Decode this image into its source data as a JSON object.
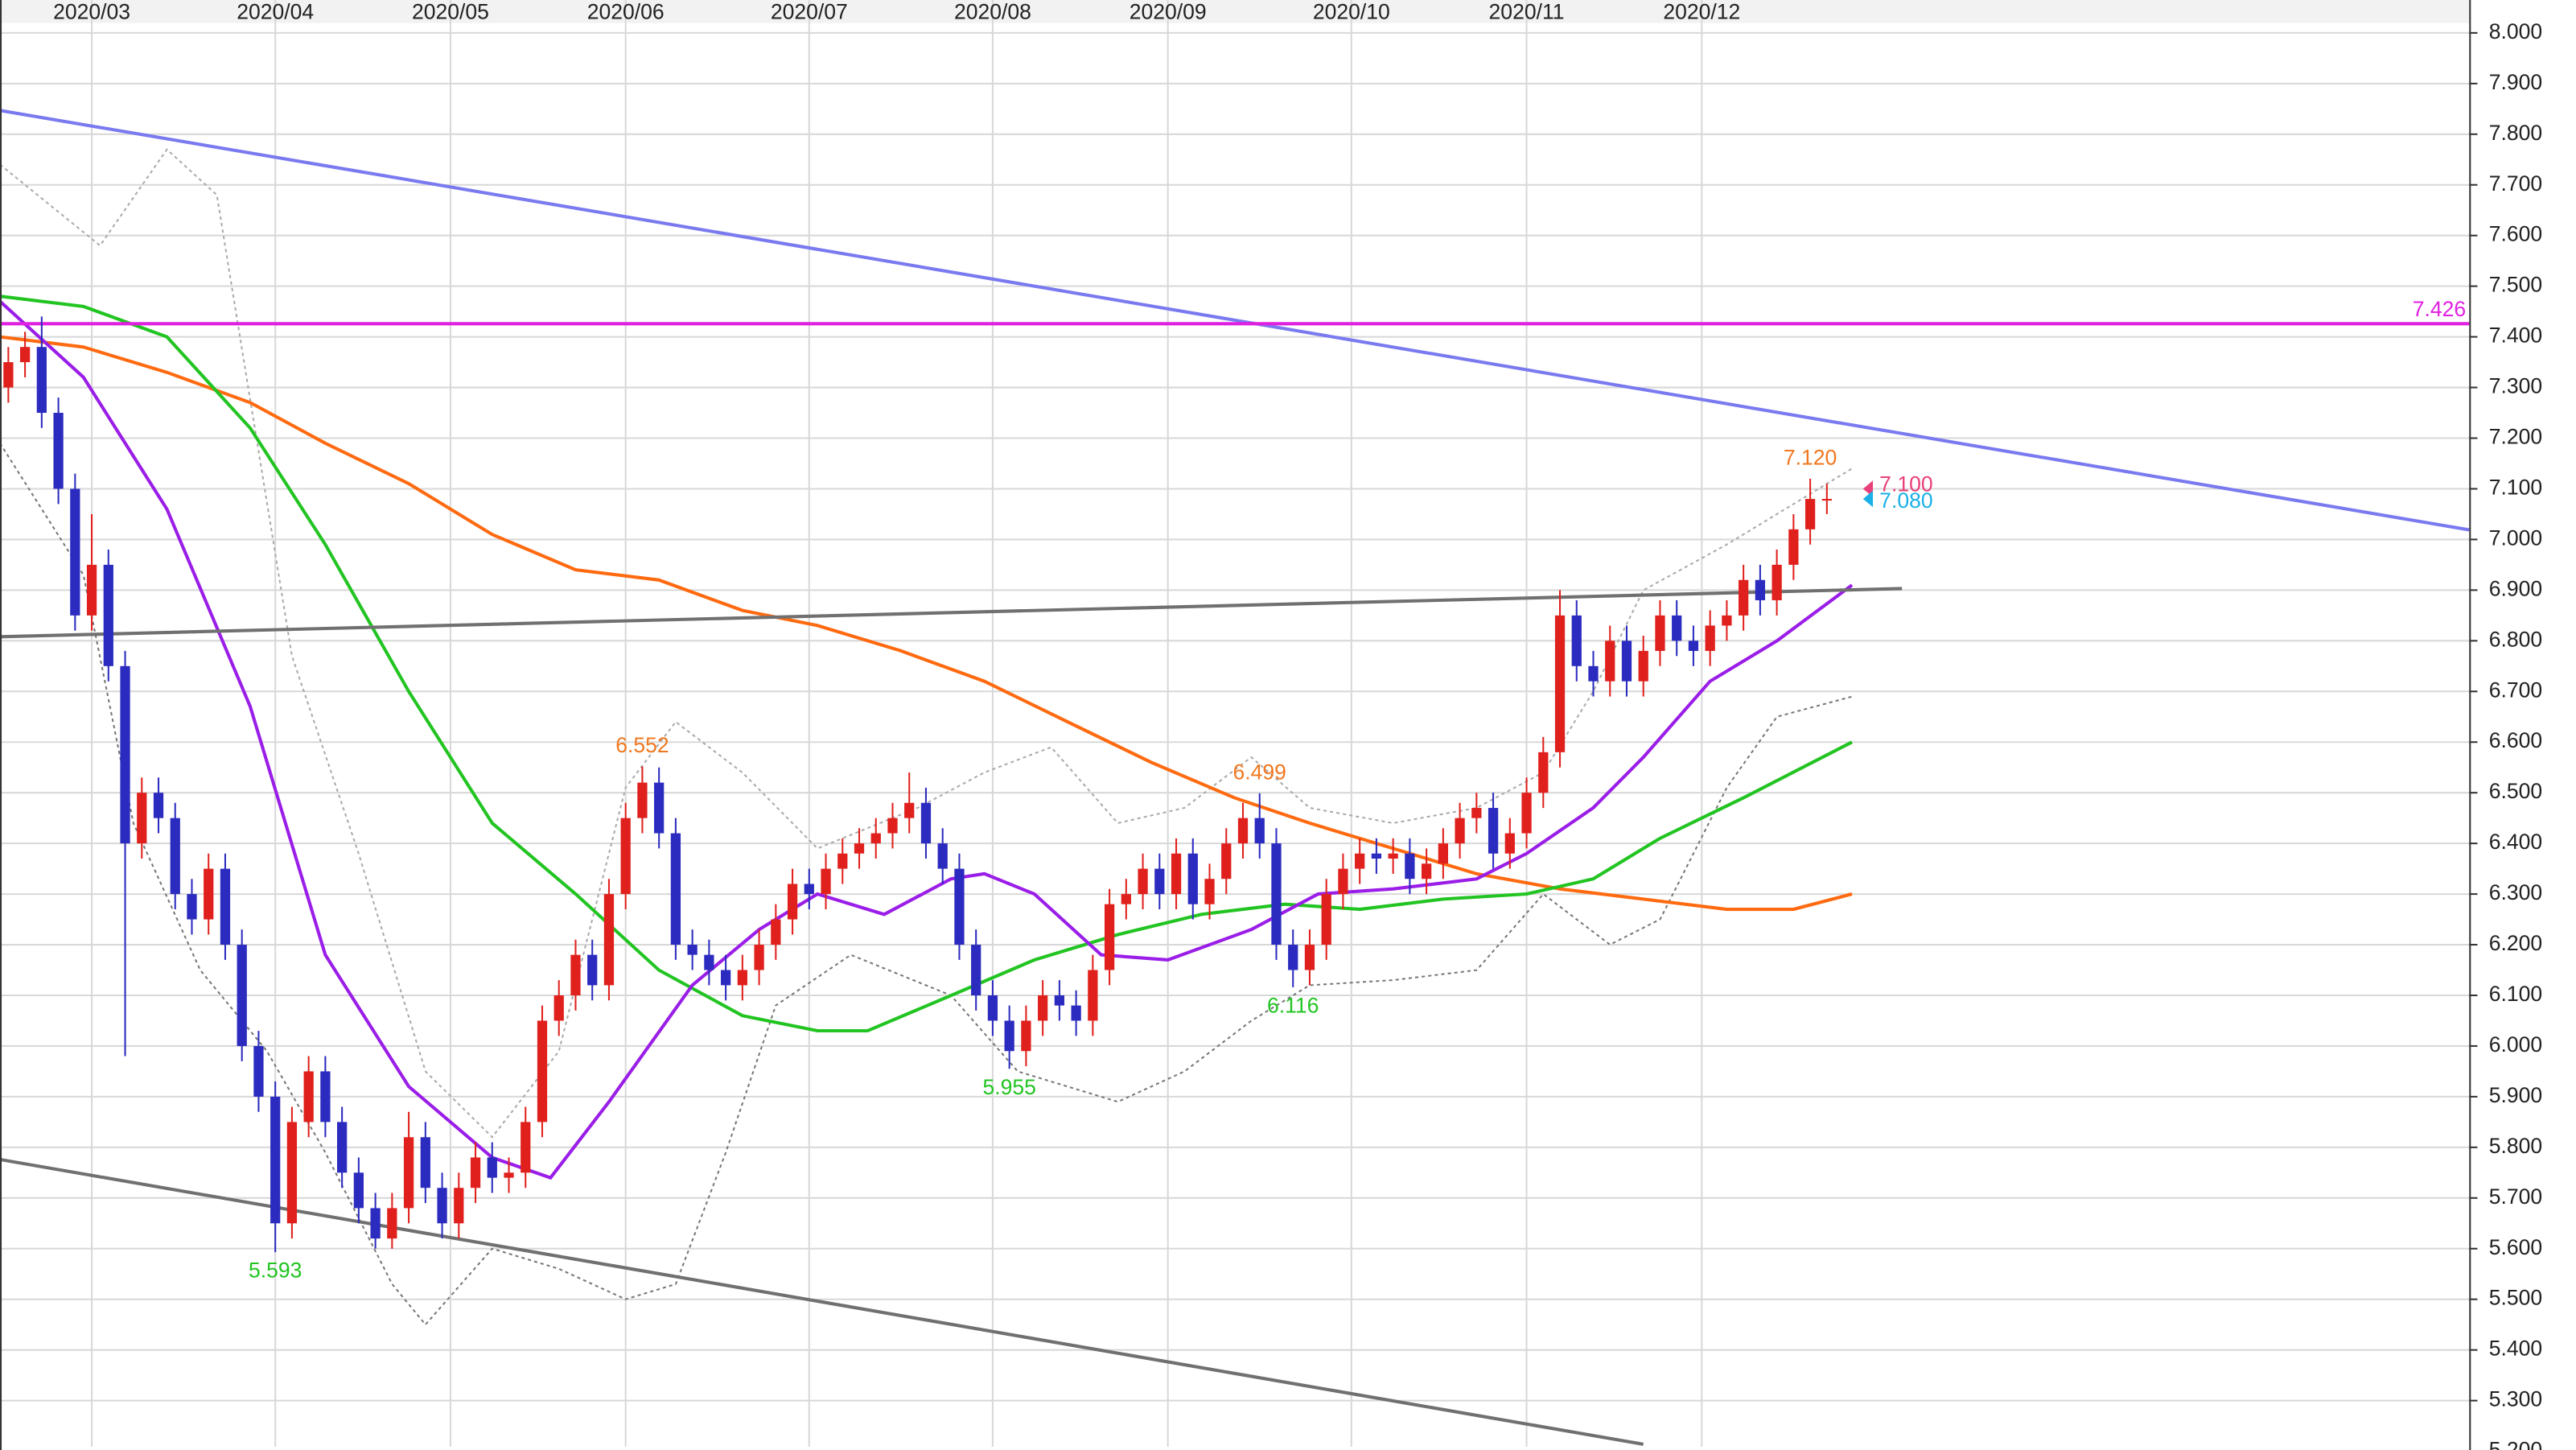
{
  "chart_data": {
    "type": "candlestick",
    "up_color": "#e0201c",
    "down_color": "#2b2bbf",
    "xlim": [
      0,
      296
    ],
    "ylim": [
      5.209,
      8.026
    ],
    "grid": true,
    "xticks": [
      {
        "value": 11,
        "label": "2020/03"
      },
      {
        "value": 33,
        "label": "2020/04"
      },
      {
        "value": 54,
        "label": "2020/05"
      },
      {
        "value": 75,
        "label": "2020/06"
      },
      {
        "value": 97,
        "label": "2020/07"
      },
      {
        "value": 119,
        "label": "2020/08"
      },
      {
        "value": 140,
        "label": "2020/09"
      },
      {
        "value": 162,
        "label": "2020/10"
      },
      {
        "value": 183,
        "label": "2020/11"
      },
      {
        "value": 204,
        "label": "2020/12"
      }
    ],
    "yticks": [
      {
        "value": 5.2,
        "label": "5.200"
      },
      {
        "value": 5.3,
        "label": "5.300"
      },
      {
        "value": 5.4,
        "label": "5.400"
      },
      {
        "value": 5.5,
        "label": "5.500"
      },
      {
        "value": 5.6,
        "label": "5.600"
      },
      {
        "value": 5.7,
        "label": "5.700"
      },
      {
        "value": 5.8,
        "label": "5.800"
      },
      {
        "value": 5.9,
        "label": "5.900"
      },
      {
        "value": 6.0,
        "label": "6.000"
      },
      {
        "value": 6.1,
        "label": "6.100"
      },
      {
        "value": 6.2,
        "label": "6.200"
      },
      {
        "value": 6.3,
        "label": "6.300"
      },
      {
        "value": 6.4,
        "label": "6.400"
      },
      {
        "value": 6.5,
        "label": "6.500"
      },
      {
        "value": 6.6,
        "label": "6.600"
      },
      {
        "value": 6.7,
        "label": "6.700"
      },
      {
        "value": 6.8,
        "label": "6.800"
      },
      {
        "value": 6.9,
        "label": "6.900"
      },
      {
        "value": 7.0,
        "label": "7.000"
      },
      {
        "value": 7.1,
        "label": "7.100"
      },
      {
        "value": 7.2,
        "label": "7.200"
      },
      {
        "value": 7.3,
        "label": "7.300"
      },
      {
        "value": 7.4,
        "label": "7.400"
      },
      {
        "value": 7.5,
        "label": "7.500"
      },
      {
        "value": 7.6,
        "label": "7.600"
      },
      {
        "value": 7.7,
        "label": "7.700"
      },
      {
        "value": 7.8,
        "label": "7.800"
      },
      {
        "value": 7.9,
        "label": "7.900"
      },
      {
        "value": 8.0,
        "label": "8.000"
      }
    ],
    "x": [
      1,
      3,
      5,
      7,
      9,
      11,
      13,
      15,
      17,
      19,
      21,
      23,
      25,
      27,
      29,
      31,
      33,
      35,
      37,
      39,
      41,
      43,
      45,
      47,
      49,
      51,
      53,
      55,
      57,
      59,
      61,
      63,
      65,
      67,
      69,
      71,
      73,
      75,
      77,
      79,
      81,
      83,
      85,
      87,
      89,
      91,
      93,
      95,
      97,
      99,
      101,
      103,
      105,
      107,
      109,
      111,
      113,
      115,
      117,
      119,
      121,
      123,
      125,
      127,
      129,
      131,
      133,
      135,
      137,
      139,
      141,
      143,
      145,
      147,
      149,
      151,
      153,
      155,
      157,
      159,
      161,
      163,
      165,
      167,
      169,
      171,
      173,
      175,
      177,
      179,
      181,
      183,
      185,
      187,
      189,
      191,
      193,
      195,
      197,
      199,
      201,
      203,
      205,
      207,
      209,
      211,
      213,
      215,
      217,
      219
    ],
    "open": [
      7.3,
      7.35,
      7.38,
      7.25,
      7.1,
      6.85,
      6.95,
      6.75,
      6.4,
      6.5,
      6.45,
      6.3,
      6.25,
      6.35,
      6.2,
      6.0,
      5.9,
      5.65,
      5.85,
      5.95,
      5.85,
      5.75,
      5.68,
      5.62,
      5.68,
      5.82,
      5.72,
      5.65,
      5.72,
      5.78,
      5.74,
      5.75,
      5.85,
      6.05,
      6.1,
      6.18,
      6.12,
      6.3,
      6.45,
      6.52,
      6.42,
      6.2,
      6.18,
      6.15,
      6.12,
      6.15,
      6.2,
      6.25,
      6.32,
      6.3,
      6.35,
      6.38,
      6.4,
      6.42,
      6.45,
      6.48,
      6.4,
      6.35,
      6.2,
      6.1,
      6.05,
      5.99,
      6.05,
      6.1,
      6.08,
      6.05,
      6.15,
      6.28,
      6.3,
      6.35,
      6.3,
      6.38,
      6.28,
      6.33,
      6.4,
      6.45,
      6.4,
      6.2,
      6.15,
      6.2,
      6.3,
      6.35,
      6.38,
      6.37,
      6.38,
      6.33,
      6.36,
      6.4,
      6.45,
      6.47,
      6.38,
      6.42,
      6.5,
      6.58,
      6.85,
      6.75,
      6.72,
      6.8,
      6.72,
      6.78,
      6.85,
      6.8,
      6.78,
      6.83,
      6.85,
      6.92,
      6.88,
      6.95,
      7.02,
      7.08
    ],
    "high": [
      7.38,
      7.41,
      7.44,
      7.28,
      7.13,
      7.05,
      6.98,
      6.78,
      6.53,
      6.53,
      6.48,
      6.33,
      6.38,
      6.38,
      6.23,
      6.03,
      5.93,
      5.88,
      5.98,
      5.98,
      5.88,
      5.78,
      5.71,
      5.71,
      5.87,
      5.85,
      5.75,
      5.75,
      5.81,
      5.81,
      5.78,
      5.88,
      6.08,
      6.13,
      6.21,
      6.21,
      6.33,
      6.48,
      6.552,
      6.55,
      6.45,
      6.23,
      6.21,
      6.18,
      6.18,
      6.23,
      6.28,
      6.35,
      6.35,
      6.38,
      6.41,
      6.43,
      6.45,
      6.48,
      6.54,
      6.51,
      6.43,
      6.38,
      6.23,
      6.13,
      6.08,
      6.08,
      6.13,
      6.13,
      6.11,
      6.18,
      6.31,
      6.33,
      6.38,
      6.38,
      6.41,
      6.41,
      6.36,
      6.43,
      6.48,
      6.499,
      6.43,
      6.23,
      6.23,
      6.33,
      6.38,
      6.41,
      6.41,
      6.41,
      6.41,
      6.39,
      6.43,
      6.48,
      6.5,
      6.5,
      6.45,
      6.53,
      6.61,
      6.9,
      6.88,
      6.78,
      6.83,
      6.83,
      6.81,
      6.88,
      6.88,
      6.83,
      6.86,
      6.88,
      6.95,
      6.95,
      6.98,
      7.05,
      7.12,
      7.11
    ],
    "low": [
      7.27,
      7.32,
      7.22,
      7.07,
      6.82,
      6.82,
      6.72,
      5.98,
      6.37,
      6.42,
      6.27,
      6.22,
      6.22,
      6.17,
      5.97,
      5.87,
      5.593,
      5.62,
      5.82,
      5.82,
      5.72,
      5.65,
      5.6,
      5.6,
      5.65,
      5.69,
      5.62,
      5.62,
      5.69,
      5.71,
      5.71,
      5.72,
      5.82,
      6.02,
      6.07,
      6.09,
      6.09,
      6.27,
      6.42,
      6.39,
      6.17,
      6.15,
      6.12,
      6.09,
      6.09,
      6.12,
      6.17,
      6.22,
      6.27,
      6.27,
      6.32,
      6.35,
      6.37,
      6.39,
      6.42,
      6.37,
      6.32,
      6.17,
      6.07,
      6.02,
      5.955,
      5.96,
      6.02,
      6.05,
      6.02,
      6.02,
      6.12,
      6.25,
      6.27,
      6.27,
      6.27,
      6.25,
      6.25,
      6.3,
      6.37,
      6.37,
      6.17,
      6.116,
      6.12,
      6.17,
      6.27,
      6.32,
      6.34,
      6.34,
      6.3,
      6.3,
      6.33,
      6.37,
      6.42,
      6.35,
      6.35,
      6.39,
      6.47,
      6.55,
      6.72,
      6.69,
      6.69,
      6.69,
      6.69,
      6.75,
      6.77,
      6.75,
      6.75,
      6.8,
      6.82,
      6.85,
      6.85,
      6.92,
      6.99,
      7.05
    ],
    "close": [
      7.35,
      7.38,
      7.25,
      7.1,
      6.85,
      6.95,
      6.75,
      6.4,
      6.5,
      6.45,
      6.3,
      6.25,
      6.35,
      6.2,
      6.0,
      5.9,
      5.65,
      5.85,
      5.95,
      5.85,
      5.75,
      5.68,
      5.62,
      5.68,
      5.82,
      5.72,
      5.65,
      5.72,
      5.78,
      5.74,
      5.75,
      5.85,
      6.05,
      6.1,
      6.18,
      6.12,
      6.3,
      6.45,
      6.52,
      6.42,
      6.2,
      6.18,
      6.15,
      6.12,
      6.15,
      6.2,
      6.25,
      6.32,
      6.3,
      6.35,
      6.38,
      6.4,
      6.42,
      6.45,
      6.48,
      6.4,
      6.35,
      6.2,
      6.1,
      6.05,
      5.99,
      6.05,
      6.1,
      6.08,
      6.05,
      6.15,
      6.28,
      6.3,
      6.35,
      6.3,
      6.38,
      6.28,
      6.33,
      6.4,
      6.45,
      6.4,
      6.2,
      6.15,
      6.2,
      6.3,
      6.35,
      6.38,
      6.37,
      6.38,
      6.33,
      6.36,
      6.4,
      6.45,
      6.47,
      6.38,
      6.42,
      6.5,
      6.58,
      6.85,
      6.75,
      6.72,
      6.8,
      6.72,
      6.78,
      6.85,
      6.8,
      6.78,
      6.83,
      6.85,
      6.92,
      6.88,
      6.95,
      7.02,
      7.08,
      7.08
    ],
    "overlays": [
      {
        "color": "#aaaaaa",
        "style": "dotted",
        "x": [
          0,
          12,
          20,
          26,
          35,
          43,
          51,
          59,
          67,
          75,
          81,
          89,
          98,
          110,
          118,
          126,
          134,
          142,
          150,
          157,
          167,
          177,
          185,
          191,
          197,
          207,
          217,
          222
        ],
        "values": [
          7.74,
          7.58,
          7.77,
          7.68,
          6.77,
          6.38,
          5.95,
          5.82,
          5.99,
          6.51,
          6.64,
          6.54,
          6.39,
          6.47,
          6.54,
          6.59,
          6.44,
          6.47,
          6.57,
          6.47,
          6.44,
          6.47,
          6.54,
          6.7,
          6.9,
          6.99,
          7.09,
          7.14
        ]
      },
      {
        "color": "#777777",
        "style": "dotted",
        "x": [
          0,
          10,
          16,
          24,
          32,
          39,
          47,
          51,
          59,
          67,
          75,
          81,
          87,
          93,
          102,
          114,
          122,
          134,
          142,
          150,
          157,
          167,
          177,
          185,
          193,
          199,
          207,
          213,
          222
        ],
        "values": [
          7.19,
          6.93,
          6.44,
          6.15,
          5.99,
          5.79,
          5.53,
          5.45,
          5.6,
          5.56,
          5.5,
          5.53,
          5.79,
          6.08,
          6.18,
          6.1,
          5.95,
          5.89,
          5.95,
          6.05,
          6.12,
          6.13,
          6.15,
          6.3,
          6.2,
          6.25,
          6.51,
          6.65,
          6.69
        ]
      },
      {
        "color": "#ff6a10",
        "style": "solid",
        "x": [
          0,
          10,
          20,
          30,
          39,
          49,
          59,
          69,
          79,
          89,
          98,
          108,
          118,
          128,
          138,
          148,
          157,
          167,
          177,
          187,
          197,
          207,
          215,
          222
        ],
        "values": [
          7.4,
          7.38,
          7.33,
          7.27,
          7.19,
          7.11,
          7.01,
          6.94,
          6.92,
          6.86,
          6.83,
          6.78,
          6.72,
          6.64,
          6.56,
          6.49,
          6.44,
          6.39,
          6.34,
          6.31,
          6.29,
          6.27,
          6.27,
          6.3
        ]
      },
      {
        "color": "#22c422",
        "style": "solid",
        "x": [
          0,
          10,
          20,
          30,
          39,
          49,
          59,
          69,
          79,
          89,
          98,
          104,
          114,
          124,
          134,
          144,
          154,
          163,
          173,
          183,
          191,
          199,
          209,
          222
        ],
        "values": [
          7.48,
          7.46,
          7.4,
          7.22,
          6.99,
          6.7,
          6.44,
          6.3,
          6.15,
          6.06,
          6.03,
          6.03,
          6.1,
          6.17,
          6.22,
          6.26,
          6.28,
          6.27,
          6.29,
          6.3,
          6.33,
          6.41,
          6.49,
          6.6
        ]
      },
      {
        "color": "#9a1de8",
        "style": "solid",
        "x": [
          0,
          10,
          20,
          30,
          39,
          49,
          59,
          66,
          73,
          83,
          91,
          98,
          106,
          114,
          118,
          124,
          132,
          140,
          150,
          158,
          167,
          177,
          183,
          191,
          197,
          205,
          213,
          222
        ],
        "values": [
          7.47,
          7.32,
          7.06,
          6.67,
          6.18,
          5.92,
          5.78,
          5.74,
          5.89,
          6.12,
          6.23,
          6.3,
          6.26,
          6.33,
          6.34,
          6.3,
          6.18,
          6.17,
          6.23,
          6.3,
          6.31,
          6.33,
          6.38,
          6.47,
          6.57,
          6.72,
          6.8,
          6.91
        ]
      },
      {
        "color": "#7a7af0",
        "style": "solid",
        "x": [
          0,
          296
        ],
        "values": [
          7.847,
          7.019
        ]
      },
      {
        "color": "#707070",
        "style": "solid",
        "x": [
          0,
          228
        ],
        "values": [
          6.808,
          6.903
        ]
      },
      {
        "color": "#707070",
        "style": "solid",
        "x": [
          0,
          197
        ],
        "values": [
          5.776,
          5.214
        ]
      },
      {
        "color": "#e020e0",
        "style": "solid",
        "x": [
          0,
          296
        ],
        "values": [
          7.426,
          7.426
        ],
        "label": "7.426"
      }
    ],
    "annotations": [
      {
        "text": "6.552",
        "x": 77,
        "y": 6.552,
        "color": "#f07820",
        "placement": "above"
      },
      {
        "text": "6.499",
        "x": 151,
        "y": 6.499,
        "color": "#f07820",
        "placement": "above"
      },
      {
        "text": "7.120",
        "x": 217,
        "y": 7.12,
        "color": "#f07820",
        "placement": "above"
      },
      {
        "text": "5.593",
        "x": 33,
        "y": 5.593,
        "color": "#22c422",
        "placement": "below"
      },
      {
        "text": "5.955",
        "x": 121,
        "y": 5.955,
        "color": "#22c422",
        "placement": "below"
      },
      {
        "text": "6.116",
        "x": 155,
        "y": 6.116,
        "color": "#22c422",
        "placement": "below"
      }
    ],
    "last_prices": [
      {
        "label": "7.100",
        "value": 7.1,
        "color": "#e8407a"
      },
      {
        "label": "7.080",
        "value": 7.08,
        "color": "#1ab0e8"
      }
    ]
  }
}
